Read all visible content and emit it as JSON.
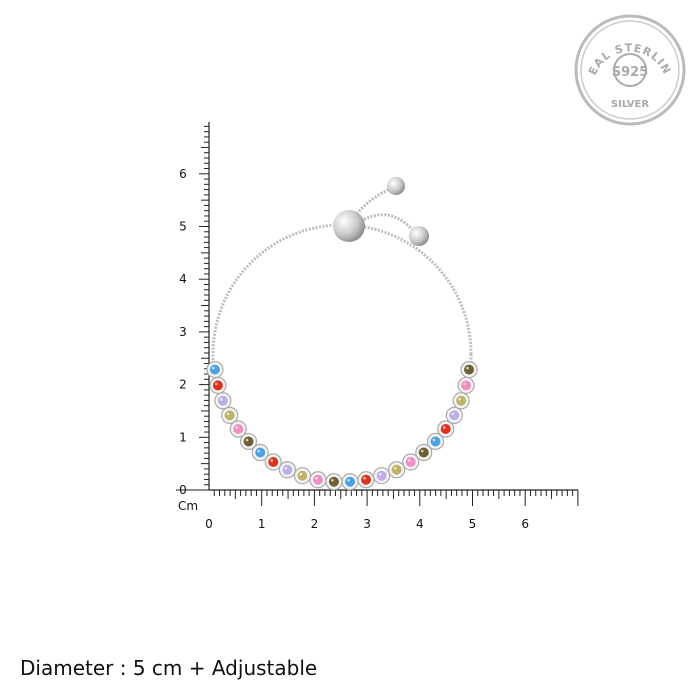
{
  "badge": {
    "top_text": "REAL STERLING",
    "center_text": "S925",
    "bottom_text": "SILVER"
  },
  "ruler": {
    "unit_label": "Cm",
    "x_ticks": [
      "0",
      "1",
      "2",
      "3",
      "4",
      "5",
      "6"
    ],
    "y_ticks": [
      "0",
      "1",
      "2",
      "3",
      "4",
      "5",
      "6"
    ]
  },
  "bracelet": {
    "stone_colors": [
      "#4aa3e8",
      "#e0321f",
      "#bfaee6",
      "#bdb466",
      "#f28ec2",
      "#6b6132"
    ]
  },
  "caption": "Diameter : 5 cm + Adjustable"
}
